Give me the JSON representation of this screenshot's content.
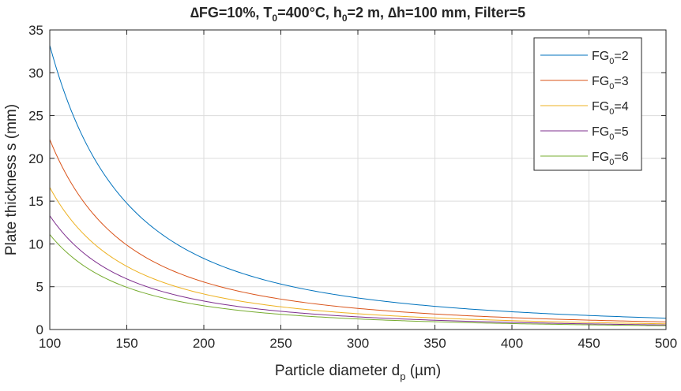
{
  "chart_data": {
    "type": "line",
    "title_parts": [
      "∆FG=10%, T",
      "0",
      "=400°C, h",
      "0",
      "=2 m, ∆h=100 mm, Filter=5"
    ],
    "xlabel_parts": [
      "Particle diameter d",
      "p",
      " (µm)"
    ],
    "ylabel": "Plate thickness s (mm)",
    "xlim": [
      100,
      500
    ],
    "ylim": [
      0,
      35
    ],
    "xticks": [
      100,
      150,
      200,
      250,
      300,
      350,
      400,
      450,
      500
    ],
    "yticks": [
      0,
      5,
      10,
      15,
      20,
      25,
      30,
      35
    ],
    "grid": true,
    "legend_position": "top-right",
    "model": "s = k / dp^2",
    "x": [
      100,
      125,
      150,
      175,
      200,
      225,
      250,
      275,
      300,
      325,
      350,
      375,
      400,
      425,
      450,
      475,
      500
    ],
    "series": [
      {
        "name_parts": [
          "FG",
          "0",
          "=2"
        ],
        "color": "#0072BD",
        "values": [
          33.2,
          21.2,
          14.8,
          10.8,
          8.3,
          6.6,
          5.3,
          4.4,
          3.7,
          3.1,
          2.7,
          2.4,
          2.1,
          1.8,
          1.6,
          1.5,
          1.3
        ]
      },
      {
        "name_parts": [
          "FG",
          "0",
          "=3"
        ],
        "color": "#D95319",
        "values": [
          22.2,
          14.2,
          9.9,
          7.2,
          5.5,
          4.4,
          3.6,
          2.9,
          2.5,
          2.1,
          1.8,
          1.6,
          1.4,
          1.2,
          1.1,
          1.0,
          0.9
        ]
      },
      {
        "name_parts": [
          "FG",
          "0",
          "=4"
        ],
        "color": "#EDB120",
        "values": [
          16.6,
          10.6,
          7.4,
          5.4,
          4.2,
          3.3,
          2.7,
          2.2,
          1.8,
          1.6,
          1.4,
          1.2,
          1.0,
          0.9,
          0.8,
          0.7,
          0.7
        ]
      },
      {
        "name_parts": [
          "FG",
          "0",
          "=5"
        ],
        "color": "#7E2F8E",
        "values": [
          13.3,
          8.5,
          5.9,
          4.3,
          3.3,
          2.6,
          2.1,
          1.8,
          1.5,
          1.3,
          1.1,
          0.9,
          0.8,
          0.7,
          0.7,
          0.6,
          0.5
        ]
      },
      {
        "name_parts": [
          "FG",
          "0",
          "=6"
        ],
        "color": "#77AC30",
        "values": [
          11.1,
          7.1,
          4.9,
          3.6,
          2.8,
          2.2,
          1.8,
          1.5,
          1.2,
          1.1,
          0.9,
          0.8,
          0.7,
          0.6,
          0.5,
          0.5,
          0.4
        ]
      }
    ]
  }
}
